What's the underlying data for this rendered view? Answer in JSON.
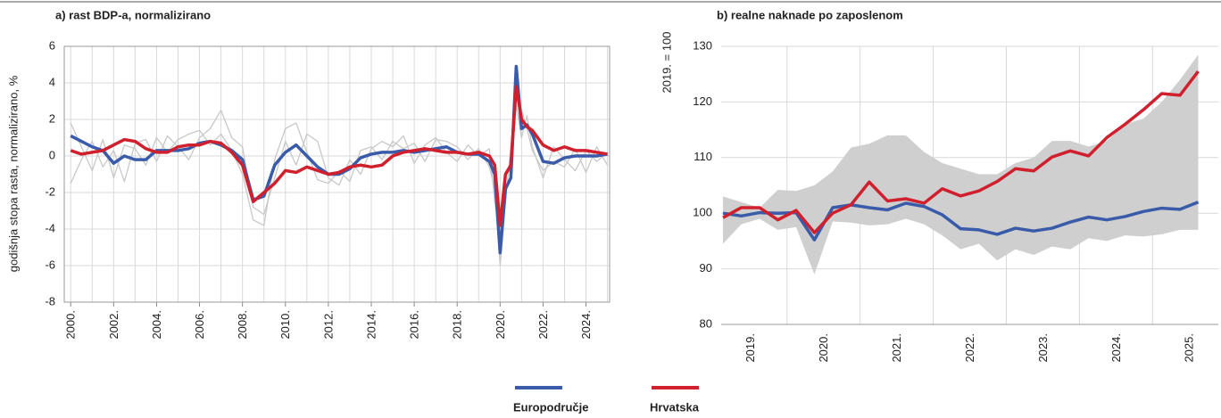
{
  "chart_data": [
    {
      "type": "line",
      "title": "a) rast BDP-a, normalizirano",
      "y_label": "godišnja stopa rasta, normalizirano, %",
      "x": [
        2000,
        2000.5,
        2001,
        2001.5,
        2002,
        2002.5,
        2003,
        2003.5,
        2004,
        2004.5,
        2005,
        2005.5,
        2006,
        2006.5,
        2007,
        2007.5,
        2008,
        2008.5,
        2009,
        2009.5,
        2010,
        2010.5,
        2011,
        2011.5,
        2012,
        2012.5,
        2013,
        2013.5,
        2014,
        2014.5,
        2015,
        2015.5,
        2016,
        2016.5,
        2017,
        2017.5,
        2018,
        2018.5,
        2019,
        2019.5,
        2019.75,
        2020,
        2020.25,
        2020.5,
        2020.75,
        2021,
        2021.25,
        2021.5,
        2022,
        2022.5,
        2023,
        2023.5,
        2024,
        2024.5,
        2025
      ],
      "series": [
        {
          "color": "#c8c8c8",
          "values": [
            1.8,
            0.5,
            -0.8,
            0.9,
            -1.2,
            0.6,
            0.4,
            -0.5,
            1.0,
            0.2,
            0.9,
            1.2,
            1.4,
            0.6,
            1.2,
            0.3,
            -1.0,
            -3.5,
            -3.8,
            -0.2,
            1.5,
            1.8,
            0.2,
            -1.3,
            -1.5,
            -0.8,
            -1.4,
            0.3,
            0.5,
            -0.2,
            0.8,
            0.4,
            0.7,
            -0.3,
            0.9,
            0.8,
            0.5,
            -0.2,
            0.4,
            -0.6,
            -1.8,
            -6.0,
            -2.5,
            0.5,
            3.5,
            2.5,
            1.5,
            0.3,
            -0.8,
            -0.3,
            -0.6,
            0.4,
            -0.9,
            0.5,
            -0.5
          ]
        },
        {
          "color": "#c8c8c8",
          "values": [
            -1.5,
            -0.2,
            0.8,
            -0.6,
            0.3,
            -1.4,
            0.7,
            0.9,
            -0.3,
            1.1,
            0.5,
            -0.2,
            1.0,
            1.5,
            2.5,
            1.0,
            0.5,
            -2.8,
            -3.2,
            -1.2,
            0.8,
            -0.5,
            1.2,
            0.8,
            -1.2,
            -1.6,
            -0.2,
            -1.0,
            0.4,
            0.8,
            0.5,
            1.1,
            -0.4,
            0.6,
            1.0,
            0.2,
            -0.3,
            0.6,
            0.0,
            0.4,
            -2.5,
            -4.5,
            -1.0,
            -0.8,
            2.8,
            1.0,
            2.2,
            0.5,
            -1.2,
            0.5,
            -0.2,
            -0.8,
            0.3,
            -0.3,
            0.2
          ]
        },
        {
          "name": "Europodručje",
          "color": "#3a5ba9",
          "values": [
            1.1,
            0.8,
            0.5,
            0.3,
            -0.4,
            0.0,
            -0.2,
            -0.2,
            0.3,
            0.3,
            0.3,
            0.4,
            0.7,
            0.8,
            0.6,
            0.3,
            -0.2,
            -2.4,
            -2.2,
            -0.5,
            0.2,
            0.6,
            0.0,
            -0.6,
            -1.0,
            -1.0,
            -0.7,
            -0.1,
            0.1,
            0.2,
            0.2,
            0.3,
            0.2,
            0.3,
            0.4,
            0.5,
            0.2,
            0.1,
            0.1,
            -0.3,
            -1.0,
            -5.3,
            -1.8,
            -1.2,
            4.9,
            1.5,
            1.7,
            1.2,
            -0.3,
            -0.4,
            -0.1,
            0.0,
            0.0,
            0.0,
            0.1
          ]
        },
        {
          "name": "Hrvatska",
          "color": "#d0202e",
          "values": [
            0.3,
            0.1,
            0.2,
            0.3,
            0.6,
            0.9,
            0.8,
            0.4,
            0.2,
            0.2,
            0.5,
            0.6,
            0.6,
            0.8,
            0.7,
            0.2,
            -0.5,
            -2.5,
            -2.0,
            -1.5,
            -0.8,
            -0.9,
            -0.6,
            -0.8,
            -1.0,
            -0.9,
            -0.6,
            -0.5,
            -0.6,
            -0.5,
            0.0,
            0.2,
            0.3,
            0.4,
            0.3,
            0.2,
            0.2,
            0.1,
            0.2,
            0.0,
            -0.5,
            -3.8,
            -1.0,
            -0.5,
            3.8,
            2.0,
            1.6,
            1.4,
            0.6,
            0.3,
            0.5,
            0.3,
            0.3,
            0.2,
            0.1
          ]
        }
      ],
      "xlim": [
        1999.7,
        2025.1
      ],
      "xticks": [
        {
          "value": 2000,
          "label": "2000."
        },
        {
          "value": 2002,
          "label": "2002."
        },
        {
          "value": 2004,
          "label": "2004."
        },
        {
          "value": 2006,
          "label": "2006."
        },
        {
          "value": 2008,
          "label": "2008."
        },
        {
          "value": 2010,
          "label": "2010."
        },
        {
          "value": 2012,
          "label": "2012."
        },
        {
          "value": 2014,
          "label": "2014."
        },
        {
          "value": 2016,
          "label": "2016."
        },
        {
          "value": 2018,
          "label": "2018."
        },
        {
          "value": 2020,
          "label": "2020."
        },
        {
          "value": 2022,
          "label": "2022."
        },
        {
          "value": 2024,
          "label": "2024."
        }
      ],
      "ylim": [
        -8,
        6
      ],
      "yticks": [
        -8,
        -6,
        -4,
        -2,
        0,
        2,
        4,
        6
      ],
      "grid": true,
      "legend": "bottom"
    },
    {
      "type": "line",
      "title": "b) realne naknade po zaposlenom",
      "y_label": "2019. = 100",
      "x": [
        2019.125,
        2019.375,
        2019.625,
        2019.875,
        2020.125,
        2020.375,
        2020.625,
        2020.875,
        2021.125,
        2021.375,
        2021.625,
        2021.875,
        2022.125,
        2022.375,
        2022.625,
        2022.875,
        2023.125,
        2023.375,
        2023.625,
        2023.875,
        2024.125,
        2024.375,
        2024.625,
        2024.875,
        2025.125,
        2025.375,
        2025.625
      ],
      "range": {
        "color": "#cfcfcf",
        "low": [
          94.5,
          98,
          99,
          97,
          97.5,
          89,
          98.5,
          98.3,
          97.8,
          98,
          99,
          98,
          96,
          93.5,
          94.5,
          91.5,
          93.5,
          92.5,
          94,
          93.5,
          95.5,
          95,
          96,
          95.8,
          96.2,
          97,
          97
        ],
        "high": [
          103,
          102,
          101,
          104.2,
          104,
          105,
          107.5,
          111.8,
          112.5,
          114,
          114,
          111,
          109,
          108,
          107,
          107,
          109,
          110,
          113,
          113,
          112,
          113,
          116,
          117,
          120,
          124,
          128.5
        ]
      },
      "series": [
        {
          "name": "Europodručje",
          "color": "#3a5ba9",
          "values": [
            100,
            99.5,
            100.1,
            100.0,
            100.1,
            95.2,
            101.0,
            101.5,
            101.0,
            100.6,
            101.8,
            101.2,
            99.7,
            97.2,
            97.0,
            96.2,
            97.3,
            96.8,
            97.3,
            98.4,
            99.3,
            98.8,
            99.4,
            100.3,
            100.9,
            100.7,
            102.0
          ]
        },
        {
          "name": "Hrvatska",
          "color": "#d0202e",
          "values": [
            99.2,
            101,
            101,
            98.8,
            100.5,
            96.5,
            100,
            101.5,
            105.6,
            102.2,
            102.6,
            101.8,
            104.4,
            103.1,
            104,
            105.7,
            108,
            107.6,
            110.1,
            111.2,
            110.3,
            113.6,
            116,
            118.6,
            121.5,
            121.2,
            125.5
          ]
        }
      ],
      "xlim": [
        2019.1,
        2025.9
      ],
      "xticks": [
        {
          "value": 2019.5,
          "label": "2019."
        },
        {
          "value": 2020.5,
          "label": "2020."
        },
        {
          "value": 2021.5,
          "label": "2021."
        },
        {
          "value": 2022.5,
          "label": "2022."
        },
        {
          "value": 2023.5,
          "label": "2023."
        },
        {
          "value": 2024.5,
          "label": "2024."
        },
        {
          "value": 2025.5,
          "label": "2025."
        }
      ],
      "ylim": [
        80,
        130
      ],
      "yticks": [
        80,
        90,
        100,
        110,
        120,
        130
      ],
      "grid": true
    }
  ]
}
